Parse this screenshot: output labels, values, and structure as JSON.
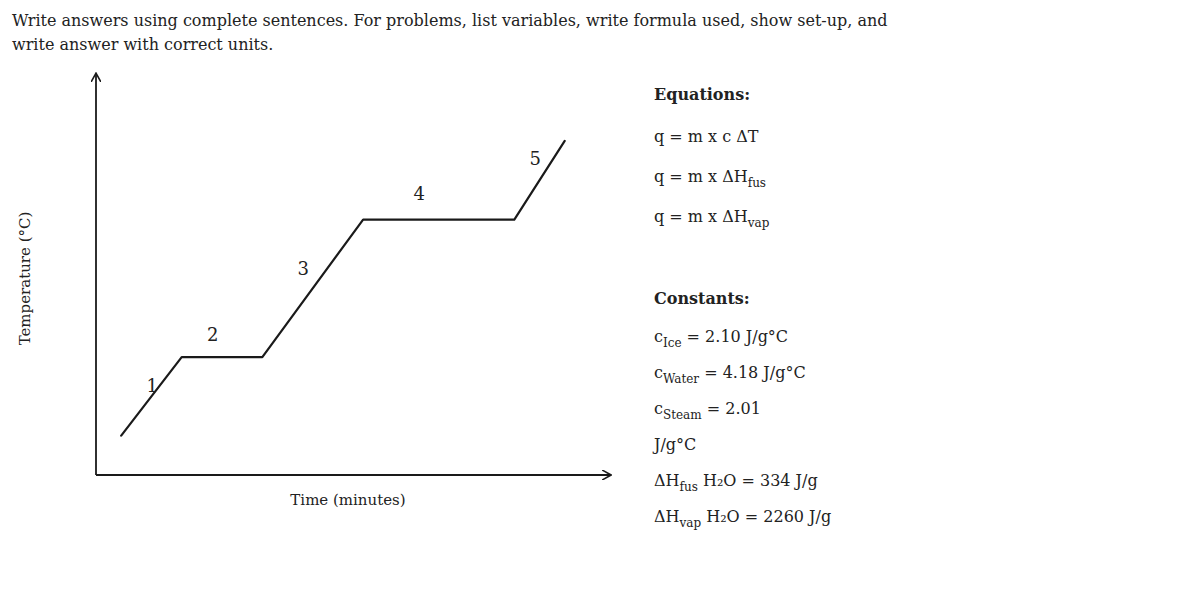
{
  "chart_data": {
    "type": "line",
    "title": "Write answers using complete sentences. For problems, list variables, write formula used, show set-up, and",
    "subtitle": "write answer with correct units.",
    "x_label": "Time (minutes)",
    "y_label": "Temperature (°C)",
    "xlim": [
      0.5,
      10.5
    ],
    "ylim": [
      0.0,
      10.0
    ],
    "tick_labels": false,
    "grid": false,
    "color": "#1a1a1a",
    "series": [
      {
        "x": [
          1.0,
          2.2,
          2.2,
          3.8,
          3.8,
          5.8,
          5.8,
          8.8,
          8.8,
          9.8
        ],
        "values": [
          1.0,
          3.0,
          3.0,
          3.0,
          3.0,
          6.5,
          6.5,
          6.5,
          6.5,
          8.5
        ]
      }
    ],
    "annotations": [
      {
        "text": "1",
        "x": 1.5,
        "y": 2.1
      },
      {
        "text": "2",
        "x": 2.7,
        "y": 3.4
      },
      {
        "text": "3",
        "x": 4.5,
        "y": 5.1
      },
      {
        "text": "4",
        "x": 6.8,
        "y": 7.0
      },
      {
        "text": "5",
        "x": 9.1,
        "y": 7.9
      }
    ],
    "equations": {
      "title": "Equations:",
      "items": [
        {
          "text": "q = m x c ΔT"
        },
        {
          "text": "q = m x ΔH",
          "sub": "fus"
        },
        {
          "text": "q = m x ΔH",
          "sub": "vap"
        }
      ]
    },
    "constants": {
      "title": "Constants:",
      "items": [
        {
          "text": "c",
          "sub": "Ice",
          "rest": " = 2.10 J/g°C"
        },
        {
          "text": "c",
          "sub": "Water",
          "rest": " = 4.18 J/g°C"
        },
        {
          "text": "c",
          "sub": "Steam",
          "rest": " = 2.01"
        },
        {
          "text": "J/g°C"
        },
        {
          "text": "ΔH",
          "sub": "fus",
          "rest": " H₂O = 334 J/g"
        },
        {
          "text": "ΔH",
          "sub": "vap",
          "rest": " H₂O = 2260 J/g"
        }
      ]
    }
  }
}
